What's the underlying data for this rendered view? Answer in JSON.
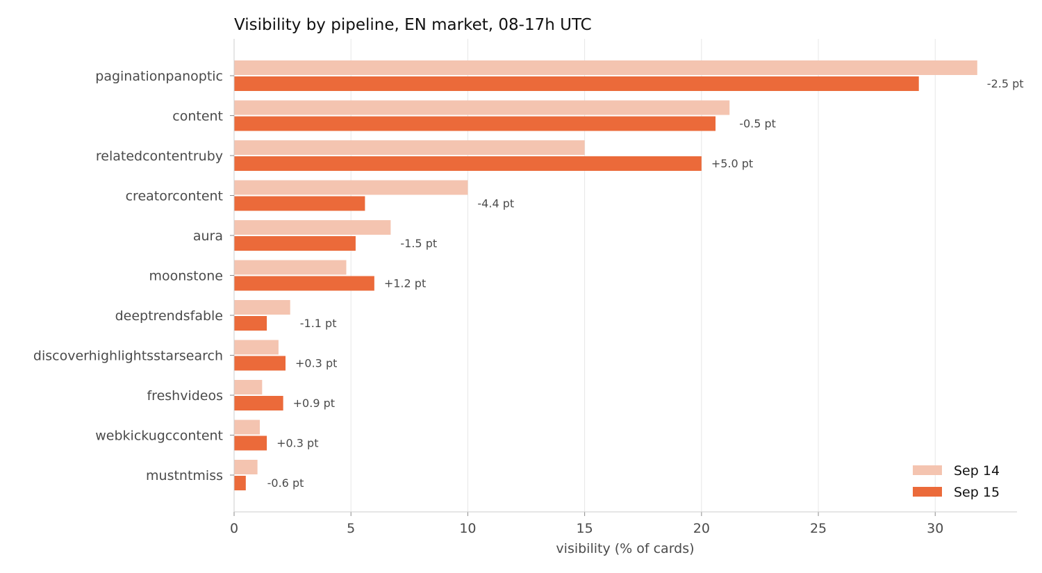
{
  "chart_data": {
    "type": "bar",
    "orientation": "horizontal",
    "title": "Visibility by pipeline, EN market, 08-17h UTC",
    "xlabel": "visibility (% of cards)",
    "ylabel": "",
    "xlim": [
      0,
      33.5
    ],
    "x_ticks": [
      0,
      5,
      10,
      15,
      20,
      25,
      30
    ],
    "grid": "vertical",
    "legend_position": "bottom-right",
    "categories": [
      "paginationpanoptic",
      "content",
      "relatedcontentruby",
      "creatorcontent",
      "aura",
      "moonstone",
      "deeptrendsfable",
      "discoverhighlightsstarsearch",
      "freshvideos",
      "webkickugccontent",
      "mustntmiss"
    ],
    "series": [
      {
        "name": "Sep 14",
        "color": "#f4c4b0",
        "values": [
          31.8,
          21.2,
          15.0,
          10.0,
          6.7,
          4.8,
          2.4,
          1.9,
          1.2,
          1.1,
          1.0
        ]
      },
      {
        "name": "Sep 15",
        "color": "#eb6a3a",
        "values": [
          29.3,
          20.6,
          20.0,
          5.6,
          5.2,
          6.0,
          1.4,
          2.2,
          2.1,
          1.4,
          0.5
        ]
      }
    ],
    "deltas": [
      "-2.5 pt",
      "-0.5 pt",
      "+5.0 pt",
      "-4.4 pt",
      "-1.5 pt",
      "+1.2 pt",
      "-1.1 pt",
      "+0.3 pt",
      "+0.9 pt",
      "+0.3 pt",
      "-0.6 pt"
    ]
  }
}
